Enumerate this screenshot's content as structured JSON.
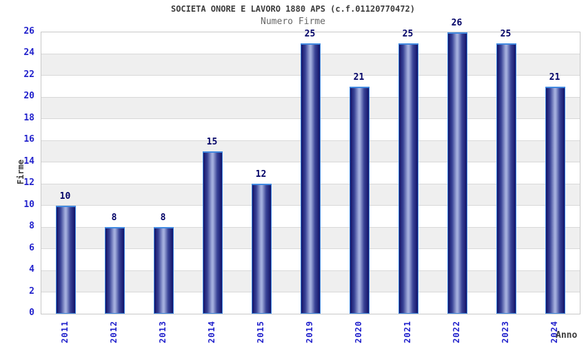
{
  "title": "SOCIETA ONORE E LAVORO 1880 APS (c.f.01120770472)",
  "subtitle": "Numero Firme",
  "chart_data": {
    "type": "bar",
    "categories": [
      "2011",
      "2012",
      "2013",
      "2014",
      "2015",
      "2019",
      "2020",
      "2021",
      "2022",
      "2023",
      "2024"
    ],
    "values": [
      10,
      8,
      8,
      15,
      12,
      25,
      21,
      25,
      26,
      25,
      21
    ],
    "title": "SOCIETA ONORE E LAVORO 1880 APS (c.f.01120770472)",
    "subtitle": "Numero Firme",
    "xlabel": "Anno",
    "ylabel": "Firme",
    "ylim": [
      0,
      26
    ],
    "ytick_step": 2,
    "yticks": [
      0,
      2,
      4,
      6,
      8,
      10,
      12,
      14,
      16,
      18,
      20,
      22,
      24,
      26
    ],
    "grid": "horizontal-bands",
    "legend_position": "none",
    "bar_value_labels": true
  },
  "colors": {
    "background": "#ffffff",
    "band_white": "#ffffff",
    "band_gray": "#efefef",
    "gridline": "#d8d8d8",
    "plot_border": "#c8c8c8",
    "tick_label": "#2222cc",
    "value_label": "#000066",
    "title": "#3c3c3c",
    "subtitle": "#666666",
    "axis_label": "#3c3c3c",
    "bar_border": "#4189e0",
    "bar_dark": "#121268",
    "bar_mid": "#3a4497",
    "bar_light": "#a3aedd"
  }
}
